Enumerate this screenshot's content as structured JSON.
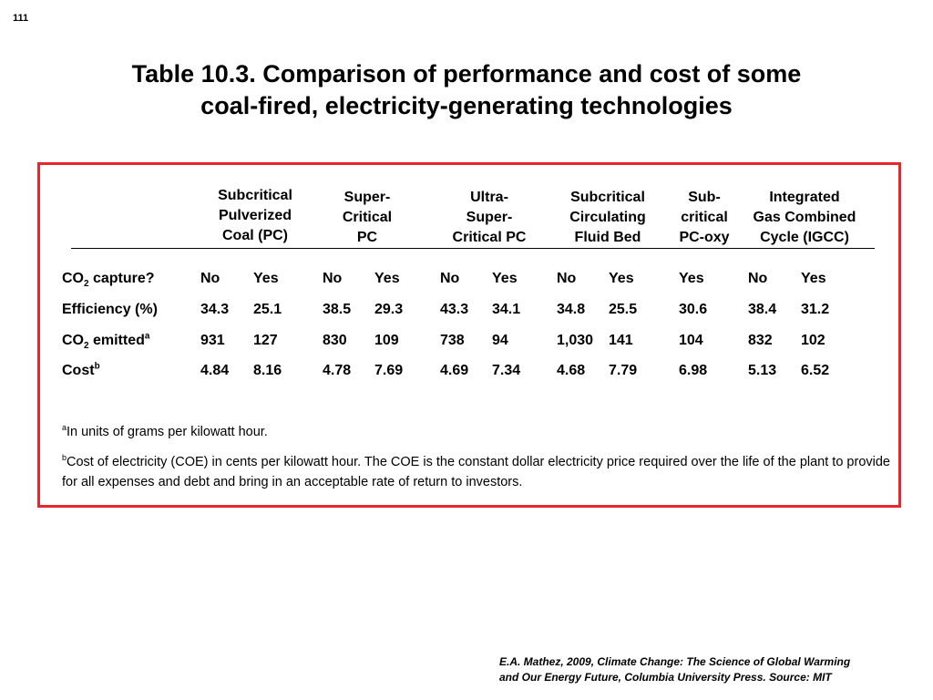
{
  "slide_number": "111",
  "title": {
    "line1": "Table 10.3.  Comparison of performance and cost of some",
    "line2": "coal-fired, electricity-generating technologies"
  },
  "table": {
    "columns": [
      {
        "lines": [
          "Subcritical",
          "Pulverized",
          "Coal (PC)"
        ]
      },
      {
        "lines": [
          "Super-",
          "Critical",
          "PC"
        ]
      },
      {
        "lines": [
          "Ultra-",
          "Super-",
          "Critical PC"
        ]
      },
      {
        "lines": [
          "Subcritical",
          "Circulating",
          "Fluid Bed"
        ]
      },
      {
        "lines": [
          "Sub-",
          "critical",
          "PC-oxy"
        ]
      },
      {
        "lines": [
          "Integrated",
          "Gas Combined",
          "Cycle (IGCC)"
        ]
      }
    ],
    "rows": [
      {
        "label_parts": {
          "a": "CO",
          "sub": "2",
          "b": " capture?",
          "sup": ""
        },
        "values": [
          "No",
          "Yes",
          "No",
          "Yes",
          "No",
          "Yes",
          "No",
          "Yes",
          "Yes",
          "No",
          "Yes"
        ]
      },
      {
        "label_parts": {
          "a": "Efficiency (%)",
          "sub": "",
          "b": "",
          "sup": ""
        },
        "values": [
          "34.3",
          "25.1",
          "38.5",
          "29.3",
          "43.3",
          "34.1",
          "34.8",
          "25.5",
          "30.6",
          "38.4",
          "31.2"
        ]
      },
      {
        "label_parts": {
          "a": "CO",
          "sub": "2",
          "b": " emitted",
          "sup": "a"
        },
        "values": [
          "931",
          "127",
          "830",
          "109",
          "738",
          "94",
          "1,030",
          "141",
          "104",
          "832",
          "102"
        ]
      },
      {
        "label_parts": {
          "a": "Cost",
          "sub": "",
          "b": "",
          "sup": "b"
        },
        "values": [
          "4.84",
          "8.16",
          "4.78",
          "7.69",
          "4.69",
          "7.34",
          "4.68",
          "7.79",
          "6.98",
          "5.13",
          "6.52"
        ]
      }
    ],
    "footnotes": {
      "a": {
        "marker": "a",
        "text": "In units of grams per kilowatt hour."
      },
      "b": {
        "marker": "b",
        "text": "Cost of electricity (COE) in cents per kilowatt hour. The COE is the constant dollar electricity price required over the life of the plant to provide for all expenses and debt and bring in an acceptable rate of return to investors."
      }
    }
  },
  "source": {
    "line1": "E.A. Mathez, 2009, Climate Change: The Science of Global Warming",
    "line2": "and Our Energy Future, Columbia University Press.  Source: MIT"
  },
  "colors": {
    "box_border": "#e8262e"
  }
}
